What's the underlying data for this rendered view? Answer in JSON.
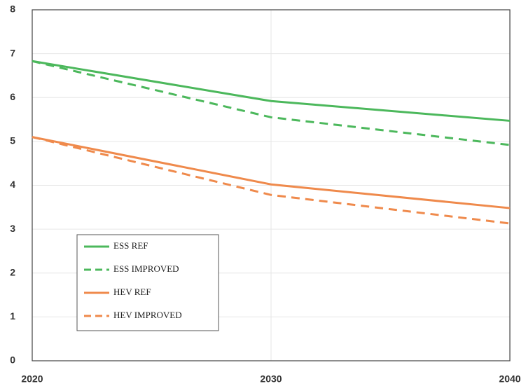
{
  "chart_data": {
    "type": "line",
    "x": [
      2020,
      2030,
      2040
    ],
    "xlim": [
      2020,
      2040
    ],
    "xticks": [
      2020,
      2030,
      2040
    ],
    "ylim": [
      0,
      8
    ],
    "yticks": [
      0,
      1,
      2,
      3,
      4,
      5,
      6,
      7,
      8
    ],
    "grid": true,
    "legend": "lower left",
    "series": [
      {
        "name": "ESS REF",
        "color": "#4cb85c",
        "line_style": "solid",
        "values": [
          6.83,
          5.92,
          5.47
        ]
      },
      {
        "name": "ESS IMPROVED",
        "color": "#4cb85c",
        "line_style": "dashed",
        "values": [
          6.83,
          5.55,
          4.92
        ]
      },
      {
        "name": "HEV REF",
        "color": "#ef8a4c",
        "line_style": "solid",
        "values": [
          5.1,
          4.02,
          3.48
        ]
      },
      {
        "name": "HEV IMPROVED",
        "color": "#ef8a4c",
        "line_style": "dashed",
        "values": [
          5.1,
          3.78,
          3.13
        ]
      }
    ]
  }
}
